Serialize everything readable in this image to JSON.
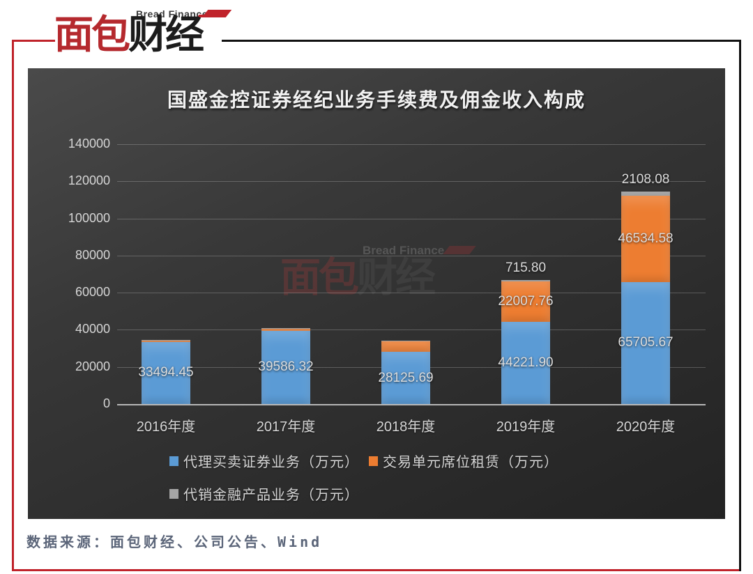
{
  "header": {
    "brand_small": "Bread Finance",
    "brand_red": "面包",
    "brand_dark": "财经"
  },
  "watermark": {
    "brand_small": "Bread Finance",
    "brand_red": "面包",
    "brand_dark": "财经"
  },
  "source_line": "数据来源：面包财经、公司公告、Wind",
  "colors": {
    "frame_red": "#c0232b",
    "frame_black": "#111111",
    "series_blue": "#5B9BD5",
    "series_orange": "#ED7D31",
    "series_gray": "#A5A5A5",
    "chart_bg_dark": "#2c2c2c",
    "label_text": "#d6d6d6",
    "source_text": "#5b6579"
  },
  "chart_data": {
    "type": "bar",
    "subtype": "stacked",
    "title": "国盛金控证券经纪业务手续费及佣金收入构成",
    "categories": [
      "2016年度",
      "2017年度",
      "2018年度",
      "2019年度",
      "2020年度"
    ],
    "series": [
      {
        "name": "代理买卖证券业务（万元）",
        "color": "#5B9BD5",
        "values": [
          33494.45,
          39586.32,
          28125.69,
          44221.9,
          65705.67
        ],
        "labels": [
          "33494.45",
          "39586.32",
          "28125.69",
          "44221.90",
          "65705.67"
        ]
      },
      {
        "name": "交易单元席位租赁（万元）",
        "color": "#ED7D31",
        "values": [
          700,
          1100,
          5700,
          22007.76,
          46534.58
        ],
        "labels": [
          "",
          "",
          "",
          "22007.76",
          "46534.58"
        ]
      },
      {
        "name": "代销金融产品业务（万元）",
        "color": "#A5A5A5",
        "values": [
          150,
          150,
          250,
          715.8,
          2108.08
        ],
        "labels": [
          "",
          "",
          "",
          "715.80",
          "2108.08"
        ]
      }
    ],
    "ylim": [
      0,
      140000
    ],
    "yticks": [
      0,
      20000,
      40000,
      60000,
      80000,
      100000,
      120000,
      140000
    ],
    "ytick_labels": [
      "0",
      "20000",
      "40000",
      "60000",
      "80000",
      "100000",
      "120000",
      "140000"
    ],
    "xlabel": "",
    "ylabel": "",
    "grid": true,
    "legend_position": "bottom"
  }
}
